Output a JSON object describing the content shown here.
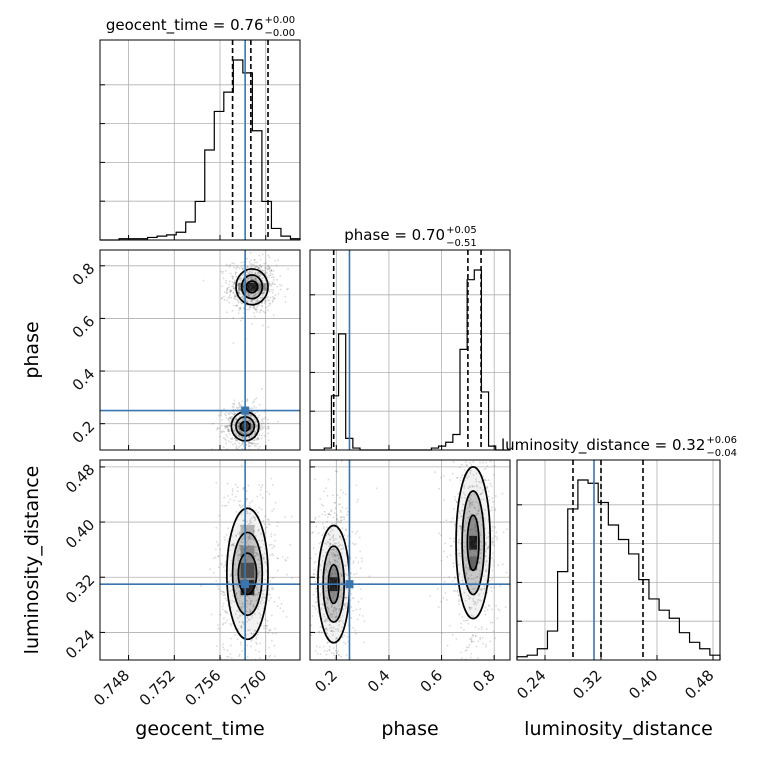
{
  "chart_data": {
    "type": "corner",
    "parameters": [
      {
        "name": "geocent_time",
        "label": "geocent_time",
        "title_main": "geocent_time = 0.76",
        "title_plus": "+0.00",
        "title_minus": "−0.00",
        "range": [
          0.7455,
          0.763
        ],
        "ticks": [
          0.748,
          0.752,
          0.756,
          0.76
        ],
        "tick_labels": [
          "0.748",
          "0.752",
          "0.756",
          "0.760"
        ],
        "truth": 0.7582,
        "quantiles": [
          0.7571,
          0.7587,
          0.7602
        ],
        "hist_edges": [
          0.7455,
          0.763
        ],
        "hist_counts": [
          0,
          0,
          1,
          1,
          1,
          2,
          3,
          4,
          6,
          14,
          30,
          70,
          100,
          115,
          140,
          130,
          85,
          30,
          9,
          3,
          1
        ]
      },
      {
        "name": "phase",
        "label": "phase",
        "title_main": "phase = 0.70",
        "title_plus": "+0.05",
        "title_minus": "−0.51",
        "range": [
          0.1,
          0.86
        ],
        "ticks": [
          0.2,
          0.4,
          0.6,
          0.8
        ],
        "tick_labels": [
          "0.2",
          "0.4",
          "0.6",
          "0.8"
        ],
        "truth": 0.25,
        "quantiles": [
          0.19,
          0.7,
          0.75
        ],
        "hist_edges": [
          0.1,
          0.86
        ],
        "hist_counts": [
          0,
          0,
          1,
          28,
          60,
          6,
          1,
          0,
          0,
          0,
          0,
          0,
          0,
          0,
          0,
          0,
          0,
          1,
          2,
          4,
          8,
          52,
          88,
          93,
          30,
          2,
          0,
          0
        ]
      },
      {
        "name": "luminosity_distance",
        "label": "luminosity_distance",
        "title_main": "luminosity_distance = 0.32",
        "title_plus": "+0.06",
        "title_minus": "−0.04",
        "range": [
          0.2,
          0.49
        ],
        "ticks": [
          0.24,
          0.32,
          0.4,
          0.48
        ],
        "tick_labels": [
          "0.24",
          "0.32",
          "0.40",
          "0.48"
        ],
        "truth": 0.31,
        "quantiles": [
          0.28,
          0.32,
          0.38
        ],
        "hist_edges": [
          0.2,
          0.49
        ],
        "hist_counts": [
          2,
          3,
          7,
          18,
          55,
          94,
          112,
          110,
          98,
          84,
          75,
          66,
          50,
          38,
          31,
          26,
          17,
          11,
          7,
          3
        ]
      }
    ],
    "pairs": [
      {
        "x": "geocent_time",
        "y": "phase",
        "modes": [
          {
            "cx": 0.7588,
            "cy": 0.72,
            "sx": [
              0.0014,
              0.0009,
              0.0005
            ],
            "sy": [
              0.068,
              0.045,
              0.022
            ]
          },
          {
            "cx": 0.7582,
            "cy": 0.19,
            "sx": [
              0.0012,
              0.0008,
              0.0004
            ],
            "sy": [
              0.055,
              0.036,
              0.018
            ]
          }
        ],
        "cells": [
          {
            "x": 0.7588,
            "y": 0.72,
            "w": 0.0012,
            "h": 0.03,
            "shade": 0.05
          },
          {
            "x": 0.758,
            "y": 0.72,
            "w": 0.0008,
            "h": 0.03,
            "shade": 0.55
          },
          {
            "x": 0.7597,
            "y": 0.72,
            "w": 0.0008,
            "h": 0.03,
            "shade": 0.6
          },
          {
            "x": 0.7582,
            "y": 0.19,
            "w": 0.001,
            "h": 0.025,
            "shade": 0.15
          }
        ]
      },
      {
        "x": "geocent_time",
        "y": "luminosity_distance",
        "modes": [
          {
            "cx": 0.7584,
            "cy": 0.325,
            "sx": [
              0.0018,
              0.0013,
              0.0008
            ],
            "sy": [
              0.095,
              0.06,
              0.03
            ]
          }
        ],
        "cells": [
          {
            "x": 0.7584,
            "y": 0.305,
            "w": 0.0012,
            "h": 0.022,
            "shade": 0.15
          },
          {
            "x": 0.7584,
            "y": 0.33,
            "w": 0.0012,
            "h": 0.022,
            "shade": 0.3
          },
          {
            "x": 0.7584,
            "y": 0.355,
            "w": 0.0012,
            "h": 0.022,
            "shade": 0.55
          },
          {
            "x": 0.7584,
            "y": 0.385,
            "w": 0.0012,
            "h": 0.022,
            "shade": 0.7
          }
        ]
      },
      {
        "x": "phase",
        "y": "luminosity_distance",
        "modes": [
          {
            "cx": 0.19,
            "cy": 0.31,
            "sx": [
              0.06,
              0.04,
              0.02
            ],
            "sy": [
              0.085,
              0.055,
              0.028
            ]
          },
          {
            "cx": 0.72,
            "cy": 0.37,
            "sx": [
              0.065,
              0.042,
              0.022
            ],
            "sy": [
              0.11,
              0.075,
              0.04
            ]
          }
        ],
        "cells": [
          {
            "x": 0.19,
            "y": 0.31,
            "w": 0.03,
            "h": 0.02,
            "shade": 0.1
          },
          {
            "x": 0.72,
            "y": 0.37,
            "w": 0.03,
            "h": 0.02,
            "shade": 0.1
          },
          {
            "x": 0.72,
            "y": 0.34,
            "w": 0.03,
            "h": 0.02,
            "shade": 0.4
          }
        ]
      }
    ],
    "grid": true,
    "truth_color": "#3b75af",
    "quantile_style": "dashed"
  }
}
